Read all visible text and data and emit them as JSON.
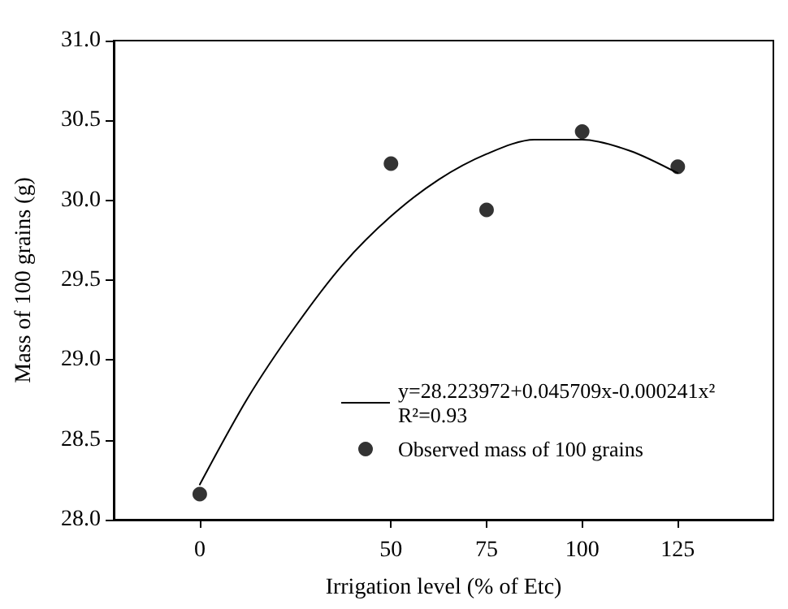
{
  "chart_data": {
    "type": "scatter",
    "xlabel": "Irrigation level (% of Etc)",
    "ylabel": "Mass of 100 grains (g)",
    "xlim": [
      -22.5,
      150
    ],
    "xticks": [
      0,
      50,
      75,
      100,
      125
    ],
    "ylim": [
      28,
      31
    ],
    "yticks": [
      {
        "value": 28,
        "label": "28.0"
      },
      {
        "value": 28.5,
        "label": "28.5"
      },
      {
        "value": 29,
        "label": "29.0"
      },
      {
        "value": 29.5,
        "label": "29.5"
      },
      {
        "value": 30,
        "label": "30.0"
      },
      {
        "value": 30.5,
        "label": "30.5"
      },
      {
        "value": 31,
        "label": "31.0"
      }
    ],
    "series": [
      {
        "type": "line",
        "name": "y=28.223972+0.045709x-0.000241x²\nR²=0.93",
        "color": "#000000",
        "marker": "none",
        "x": [
          0,
          12.5,
          25,
          37.5,
          50,
          62.5,
          75,
          87.5,
          100,
          112.5,
          125
        ],
        "values": [
          28.22,
          28.76,
          29.21,
          29.6,
          29.9,
          30.13,
          30.29,
          30.38,
          30.38,
          30.31,
          30.17
        ]
      },
      {
        "type": "scatter",
        "name": "Observed mass of 100 grains",
        "color": "#000000",
        "marker": "circle",
        "x": [
          0,
          50,
          75,
          100,
          125
        ],
        "values": [
          28.16,
          30.23,
          29.94,
          30.43,
          30.21
        ]
      }
    ],
    "grid": false,
    "legend": "bottom right"
  }
}
